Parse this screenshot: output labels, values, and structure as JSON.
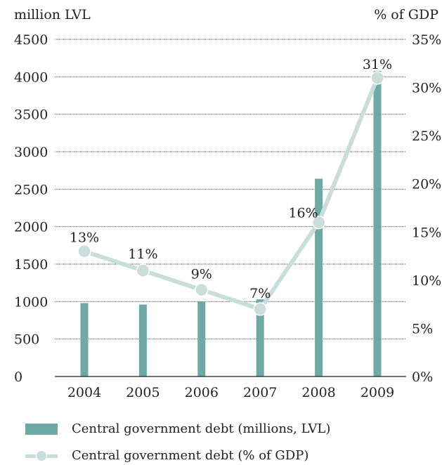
{
  "chart_data": {
    "type": "bar",
    "categories": [
      "2004",
      "2005",
      "2006",
      "2007",
      "2008",
      "2009"
    ],
    "series": [
      {
        "name": "Central government debt (millions, LVL)",
        "type": "bar",
        "axis": "left",
        "values": [
          980,
          960,
          1000,
          1030,
          2640,
          4080
        ]
      },
      {
        "name": "Central government debt (% of GDP)",
        "type": "line",
        "axis": "right",
        "values": [
          13,
          11,
          9,
          7,
          16,
          31
        ],
        "labels": [
          "13%",
          "11%",
          "9%",
          "7%",
          "16%",
          "31%"
        ]
      }
    ],
    "ylabel_left": "million LVL",
    "ylabel_right": "% of GDP",
    "ylim_left": [
      0,
      4500
    ],
    "ylim_right": [
      0,
      35
    ],
    "yticks_left": [
      "0",
      "500",
      "1000",
      "1500",
      "2000",
      "2500",
      "3000",
      "3500",
      "4000",
      "4500"
    ],
    "yticks_right": [
      "0%",
      "5%",
      "10%",
      "15%",
      "20%",
      "25%",
      "30%",
      "35%"
    ],
    "grid": "horizontal dotted",
    "legend_position": "bottom",
    "colors": {
      "bar": "#6ea9a6",
      "line": "#c9dddb",
      "text": "#222222"
    }
  }
}
